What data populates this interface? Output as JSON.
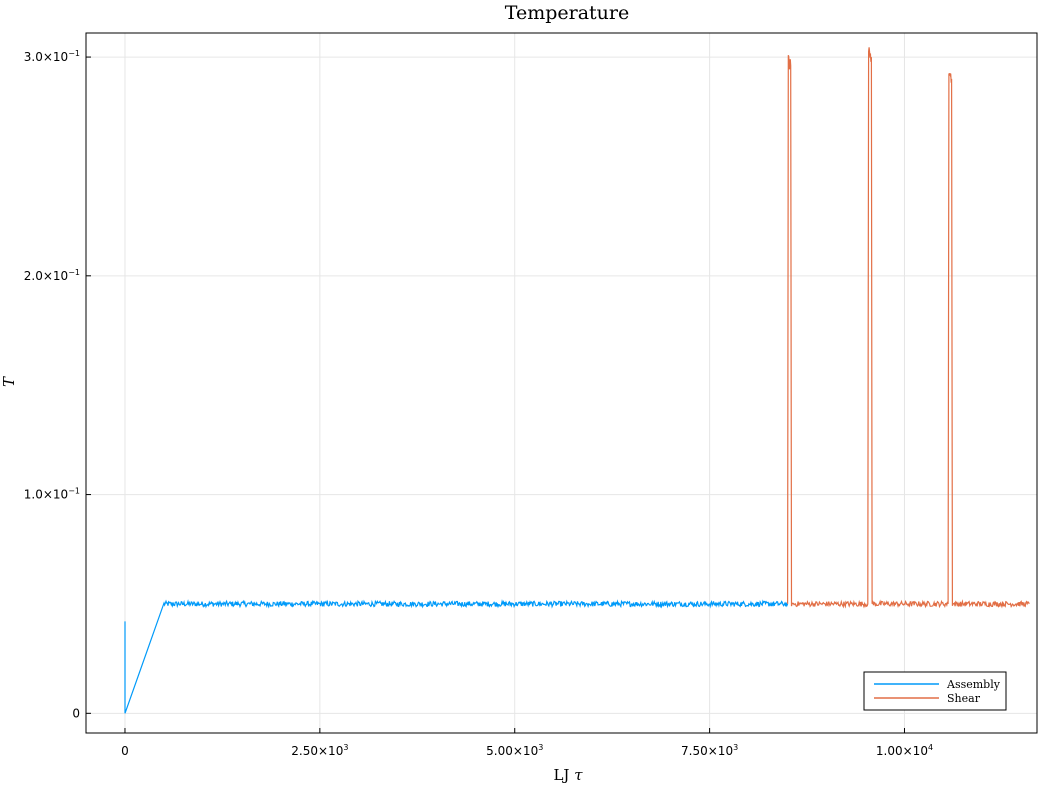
{
  "chart_data": {
    "type": "line",
    "title": "Temperature",
    "xlabel_main": "LJ",
    "xlabel_symbol": "τ",
    "ylabel": "T",
    "xlim": [
      -500,
      11700
    ],
    "ylim": [
      -0.009,
      0.311
    ],
    "grid": true,
    "legend_position": "bottom-right",
    "x_ticks": [
      {
        "value": 0,
        "mantissa": "0",
        "exp": ""
      },
      {
        "value": 2500,
        "mantissa": "2.50×10",
        "exp": "3"
      },
      {
        "value": 5000,
        "mantissa": "5.00×10",
        "exp": "3"
      },
      {
        "value": 7500,
        "mantissa": "7.50×10",
        "exp": "3"
      },
      {
        "value": 10000,
        "mantissa": "1.00×10",
        "exp": "4"
      }
    ],
    "y_ticks": [
      {
        "value": 0,
        "mantissa": "0",
        "exp": ""
      },
      {
        "value": 0.1,
        "mantissa": "1.0×10",
        "exp": "−1"
      },
      {
        "value": 0.2,
        "mantissa": "2.0×10",
        "exp": "−1"
      },
      {
        "value": 0.3,
        "mantissa": "3.0×10",
        "exp": "−1"
      }
    ],
    "series": [
      {
        "name": "Assembly",
        "color": "#009af9",
        "points": [
          [
            0,
            0.042
          ],
          [
            0,
            0.0
          ],
          [
            500,
            0.05
          ],
          [
            8500,
            0.05
          ]
        ],
        "noise_from_x": 500,
        "noise_amplitude": 0.0012
      },
      {
        "name": "Shear",
        "color": "#e26f46",
        "points": [
          [
            8500,
            0.05
          ],
          [
            8510,
            0.298
          ],
          [
            8540,
            0.296
          ],
          [
            8550,
            0.05
          ],
          [
            9530,
            0.05
          ],
          [
            9540,
            0.302
          ],
          [
            9575,
            0.3
          ],
          [
            9585,
            0.05
          ],
          [
            10560,
            0.05
          ],
          [
            10570,
            0.294
          ],
          [
            10605,
            0.29
          ],
          [
            10615,
            0.05
          ],
          [
            11600,
            0.05
          ]
        ],
        "noise_amplitude": 0.0012
      }
    ]
  }
}
